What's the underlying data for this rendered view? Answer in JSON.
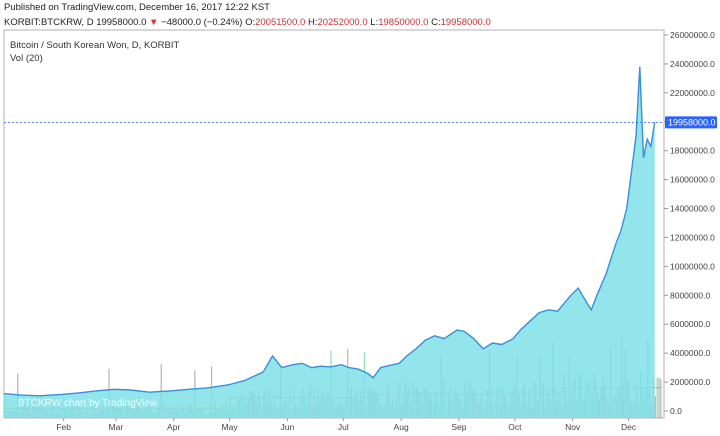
{
  "header": {
    "published": "Published on TradingView.com, December 16, 2017 12:22 KST",
    "symbol": "KORBIT:BTCKRW, D",
    "last": "19958000.0",
    "change": "−48000.0 (−0.24%)",
    "open_label": "O:",
    "open": "20051500.0",
    "high_label": "H:",
    "high": "20252000.0",
    "low_label": "L:",
    "low": "19850000.0",
    "close_label": "C:",
    "close": "19958000.0"
  },
  "chart_title": "Bitcoin / South Korean Won, D, KORBIT",
  "volume_label": "Vol (20)",
  "watermark": "BTCKRW chart by TradingView",
  "last_price_label": "19958000.0",
  "colors": {
    "line": "#3a8fd6",
    "area": "#7fe0e8",
    "volume_up": "#6fcf97",
    "volume_down": "#e57373",
    "volume_neutral": "#9e9e9e",
    "volume_ma": "#e7a15c",
    "price_line": "#2962ff"
  },
  "chart_data": {
    "type": "area",
    "title": "Bitcoin / South Korean Won, D, KORBIT",
    "y_ticks": [
      "26000000.0",
      "24000000.0",
      "22000000.0",
      "20000000.0",
      "18000000.0",
      "16000000.0",
      "14000000.0",
      "12000000.0",
      "10000000.0",
      "8000000.0",
      "6000000.0",
      "4000000.0",
      "2000000.0",
      "0.0"
    ],
    "ylim": [
      0,
      26000000
    ],
    "x_ticks": [
      "Feb",
      "Mar",
      "Apr",
      "May",
      "Jun",
      "Jul",
      "Aug",
      "Sep",
      "Oct",
      "Nov",
      "Dec"
    ],
    "x_tick_days": [
      32,
      60,
      91,
      121,
      152,
      182,
      213,
      244,
      274,
      305,
      335
    ],
    "x_domain_start": "2017-01-01",
    "x_domain_end": "2017-12-21",
    "price_series": {
      "dates": [
        "2017-01-01",
        "2017-01-10",
        "2017-01-20",
        "2017-02-01",
        "2017-02-10",
        "2017-02-20",
        "2017-03-01",
        "2017-03-10",
        "2017-03-20",
        "2017-04-01",
        "2017-04-10",
        "2017-04-20",
        "2017-05-01",
        "2017-05-10",
        "2017-05-20",
        "2017-05-25",
        "2017-05-30",
        "2017-06-05",
        "2017-06-10",
        "2017-06-15",
        "2017-06-20",
        "2017-06-25",
        "2017-07-01",
        "2017-07-05",
        "2017-07-10",
        "2017-07-15",
        "2017-07-18",
        "2017-07-22",
        "2017-07-25",
        "2017-08-01",
        "2017-08-05",
        "2017-08-10",
        "2017-08-15",
        "2017-08-20",
        "2017-08-25",
        "2017-09-01",
        "2017-09-05",
        "2017-09-10",
        "2017-09-15",
        "2017-09-20",
        "2017-09-25",
        "2017-10-01",
        "2017-10-05",
        "2017-10-10",
        "2017-10-15",
        "2017-10-20",
        "2017-10-25",
        "2017-11-01",
        "2017-11-05",
        "2017-11-10",
        "2017-11-12",
        "2017-11-15",
        "2017-11-20",
        "2017-11-25",
        "2017-11-28",
        "2017-12-01",
        "2017-12-04",
        "2017-12-06",
        "2017-12-08",
        "2017-12-10",
        "2017-12-12",
        "2017-12-14",
        "2017-12-16"
      ],
      "values": [
        1200000,
        1100000,
        1050000,
        1150000,
        1250000,
        1400000,
        1500000,
        1450000,
        1300000,
        1400000,
        1500000,
        1600000,
        1800000,
        2100000,
        2700000,
        3800000,
        3000000,
        3200000,
        3300000,
        3000000,
        3100000,
        3050000,
        3200000,
        3000000,
        2900000,
        2600000,
        2300000,
        3000000,
        3100000,
        3300000,
        3800000,
        4300000,
        4900000,
        5200000,
        5000000,
        5600000,
        5500000,
        5000000,
        4300000,
        4700000,
        4600000,
        5000000,
        5600000,
        6200000,
        6800000,
        7000000,
        6900000,
        8000000,
        8500000,
        7400000,
        7000000,
        8000000,
        9500000,
        11500000,
        12500000,
        14000000,
        17000000,
        19000000,
        23800000,
        17500000,
        18800000,
        18300000,
        19958000
      ]
    },
    "last_value": 19958000
  }
}
